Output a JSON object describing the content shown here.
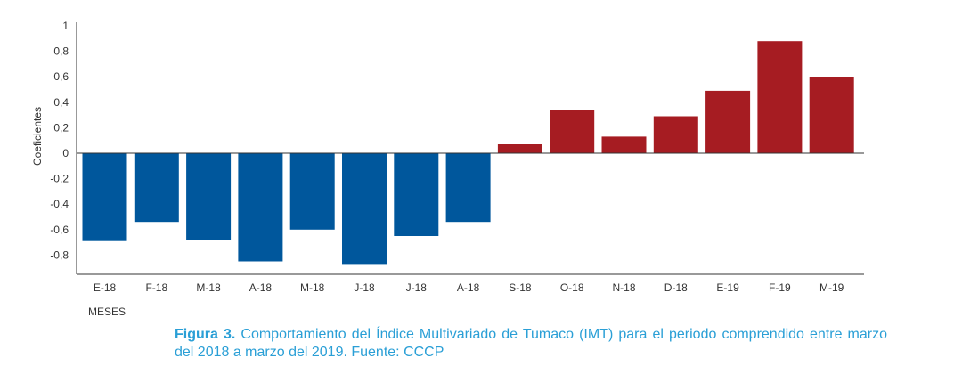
{
  "chart_data": {
    "type": "bar",
    "title": "",
    "xlabel": "MESES",
    "ylabel": "Coeficientes",
    "ylim": [
      -0.95,
      1.0
    ],
    "yticks": [
      1,
      0.8,
      0.6,
      0.4,
      0.2,
      0,
      -0.2,
      -0.4,
      -0.6,
      -0.8
    ],
    "ytick_labels": [
      "1",
      "0,8",
      "0,6",
      "0,4",
      "0,2",
      "0",
      "-0,2",
      "-0,4",
      "-0,6",
      "-0,8"
    ],
    "categories": [
      "E-18",
      "F-18",
      "M-18",
      "A-18",
      "M-18",
      "J-18",
      "J-18",
      "A-18",
      "S-18",
      "O-18",
      "N-18",
      "D-18",
      "E-19",
      "F-19",
      "M-19"
    ],
    "values": [
      -0.69,
      -0.54,
      -0.68,
      -0.85,
      -0.6,
      -0.87,
      -0.65,
      -0.54,
      0.07,
      0.34,
      0.13,
      0.29,
      0.49,
      0.88,
      0.6
    ],
    "colors": {
      "negative": "#00579c",
      "positive": "#a61c22"
    }
  },
  "caption": {
    "label": "Figura 3.",
    "text": "Comportamiento del Índice Multivariado de Tumaco (IMT) para el periodo comprendido entre marzo del 2018 a marzo del 2019. Fuente: CCCP"
  }
}
